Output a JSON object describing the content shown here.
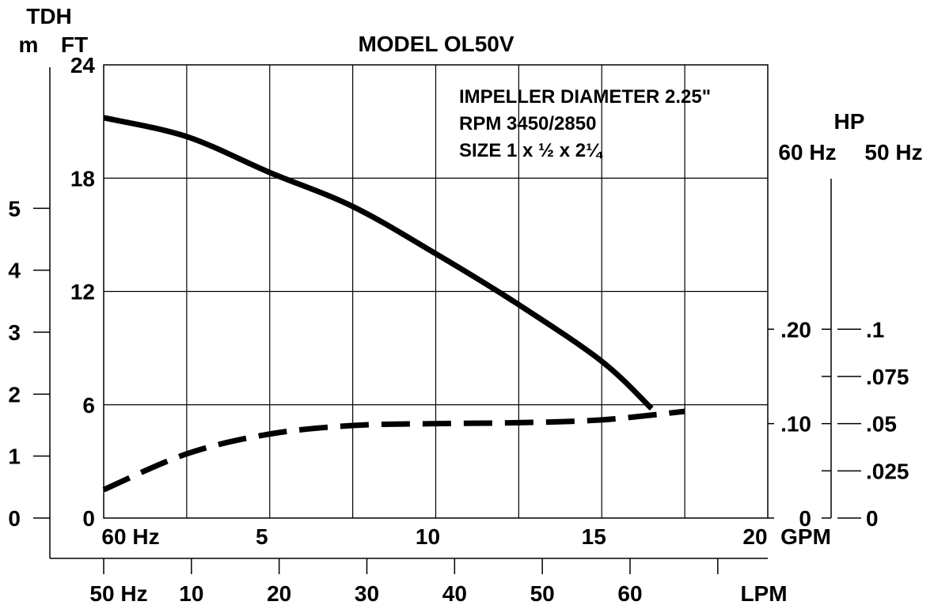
{
  "chart_data": {
    "type": "line",
    "title": "MODEL OL50V",
    "annotations": [
      "IMPELLER DIAMETER 2.25\"",
      "RPM 3450/2850",
      "SIZE 1 x ½ x 2¼"
    ],
    "left_axes": {
      "header": "TDH",
      "m": {
        "label": "m",
        "ticks": [
          "0",
          "1",
          "2",
          "3",
          "4",
          "5"
        ],
        "range": [
          0,
          7.315
        ]
      },
      "ft": {
        "label": "FT",
        "ticks": [
          "0",
          "6",
          "12",
          "18",
          "24"
        ],
        "range": [
          0,
          24
        ]
      }
    },
    "bottom_axes": {
      "gpm": {
        "label": "GPM",
        "hz": "60 Hz",
        "ticks": [
          "5",
          "10",
          "15",
          "20"
        ],
        "range": [
          0,
          20
        ]
      },
      "lpm": {
        "label": "LPM",
        "hz": "50 Hz",
        "ticks": [
          "10",
          "20",
          "30",
          "40",
          "50",
          "60"
        ],
        "range": [
          0,
          75.7
        ]
      }
    },
    "right_axes": {
      "header": "HP",
      "hp60": {
        "label": "60 Hz",
        "ticks": [
          {
            "label": "0",
            "value": 0
          },
          {
            "label": ".10",
            "value": 0.1
          },
          {
            "label": ".20",
            "value": 0.2
          }
        ],
        "range": [
          0,
          0.48
        ]
      },
      "hp50": {
        "label": "50 Hz",
        "ticks": [
          {
            "label": "0",
            "value": 0
          },
          {
            "label": ".025",
            "value": 0.025
          },
          {
            "label": ".05",
            "value": 0.05
          },
          {
            "label": ".075",
            "value": 0.075
          },
          {
            "label": ".1",
            "value": 0.1
          }
        ],
        "range": [
          0,
          0.24
        ]
      }
    },
    "grid": true,
    "series": [
      {
        "style": "solid",
        "axis": "ft",
        "x": [
          0,
          2.5,
          5,
          7.5,
          10,
          12.5,
          15,
          16.5
        ],
        "y": [
          21.2,
          20.2,
          18.3,
          16.5,
          14.0,
          11.3,
          8.3,
          5.8
        ]
      },
      {
        "style": "dashed",
        "axis": "hp60",
        "x": [
          0,
          2.5,
          5,
          7.5,
          10,
          12.5,
          15,
          17.5
        ],
        "y": [
          0.03,
          0.068,
          0.089,
          0.098,
          0.1,
          0.101,
          0.104,
          0.113
        ]
      }
    ]
  }
}
